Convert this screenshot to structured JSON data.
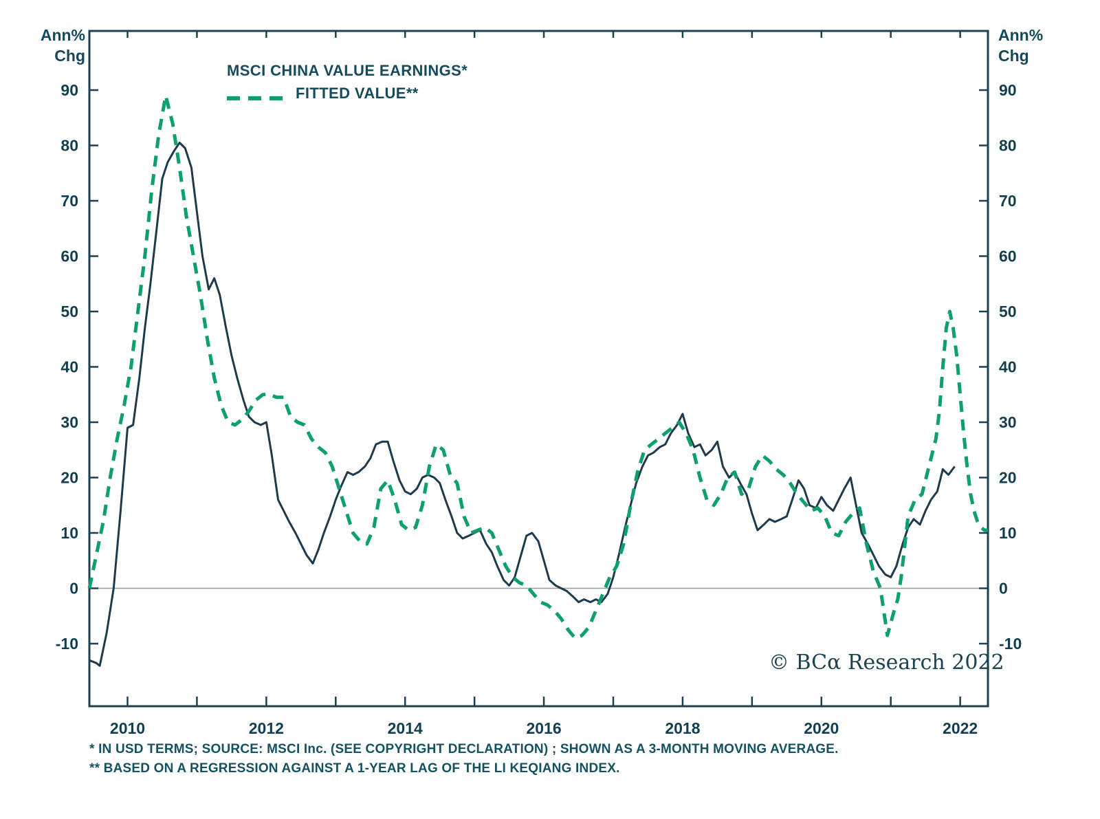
{
  "chart": {
    "y_unit_line1": "Ann%",
    "y_unit_line2": "Chg",
    "series_labels": [
      "MSCI CHINA VALUE EARNINGS*",
      "FITTED VALUE**"
    ],
    "copyright": "© BCα Research 2022",
    "footnotes": [
      "* IN USD TERMS; SOURCE: MSCI Inc. (SEE COPYRIGHT DECLARATION) ; SHOWN AS A 3-MONTH MOVING AVERAGE.",
      "** BASED ON A REGRESSION AGAINST A 1-YEAR LAG OF THE LI KEQIANG INDEX."
    ]
  },
  "chart_data": {
    "type": "line",
    "title": "",
    "xlabel": "",
    "ylabel": "Ann% Chg",
    "ylim": [
      -10,
      90
    ],
    "y_ticks": [
      90,
      80,
      70,
      60,
      50,
      40,
      30,
      20,
      10,
      0,
      -10
    ],
    "x_range": [
      2009.45,
      2022.4
    ],
    "x_ticks": [
      2010,
      2011,
      2012,
      2013,
      2014,
      2015,
      2016,
      2017,
      2018,
      2019,
      2020,
      2021,
      2022
    ],
    "x_tick_labels": [
      2010,
      2012,
      2014,
      2016,
      2018,
      2020,
      2022
    ],
    "grid": false,
    "zero_line": true,
    "legend_position": "top-left-inside",
    "frame_color": "#1d4050",
    "zero_line_color": "#8f9ea4",
    "background": "#ffffff",
    "series": [
      {
        "name": "MSCI CHINA VALUE EARNINGS*",
        "style": "solid",
        "color": "#1e3a4c",
        "points": [
          [
            2009.45,
            -13
          ],
          [
            2009.55,
            -13.5
          ],
          [
            2009.6,
            -14
          ],
          [
            2009.7,
            -8
          ],
          [
            2009.8,
            0
          ],
          [
            2009.9,
            14
          ],
          [
            2010.0,
            29
          ],
          [
            2010.08,
            29.5
          ],
          [
            2010.17,
            38
          ],
          [
            2010.25,
            47
          ],
          [
            2010.33,
            55
          ],
          [
            2010.42,
            65
          ],
          [
            2010.5,
            74
          ],
          [
            2010.58,
            77
          ],
          [
            2010.67,
            79
          ],
          [
            2010.75,
            80.5
          ],
          [
            2010.83,
            79.5
          ],
          [
            2010.92,
            76
          ],
          [
            2011.0,
            68
          ],
          [
            2011.08,
            60
          ],
          [
            2011.17,
            54
          ],
          [
            2011.25,
            56
          ],
          [
            2011.33,
            53
          ],
          [
            2011.42,
            47
          ],
          [
            2011.5,
            42
          ],
          [
            2011.58,
            38
          ],
          [
            2011.67,
            34
          ],
          [
            2011.75,
            31
          ],
          [
            2011.83,
            30
          ],
          [
            2011.92,
            29.5
          ],
          [
            2012.0,
            30
          ],
          [
            2012.08,
            24
          ],
          [
            2012.17,
            16
          ],
          [
            2012.25,
            14
          ],
          [
            2012.33,
            12
          ],
          [
            2012.42,
            10
          ],
          [
            2012.5,
            8
          ],
          [
            2012.58,
            6
          ],
          [
            2012.67,
            4.5
          ],
          [
            2012.75,
            7
          ],
          [
            2012.83,
            10
          ],
          [
            2012.92,
            13
          ],
          [
            2013.0,
            16
          ],
          [
            2013.08,
            18.5
          ],
          [
            2013.17,
            21
          ],
          [
            2013.25,
            20.5
          ],
          [
            2013.33,
            21
          ],
          [
            2013.42,
            22
          ],
          [
            2013.5,
            23.5
          ],
          [
            2013.58,
            26
          ],
          [
            2013.67,
            26.5
          ],
          [
            2013.75,
            26.5
          ],
          [
            2013.83,
            23
          ],
          [
            2013.92,
            19.5
          ],
          [
            2014.0,
            17.5
          ],
          [
            2014.08,
            17
          ],
          [
            2014.17,
            18
          ],
          [
            2014.25,
            20
          ],
          [
            2014.33,
            20.5
          ],
          [
            2014.42,
            20
          ],
          [
            2014.5,
            19
          ],
          [
            2014.58,
            16
          ],
          [
            2014.67,
            13
          ],
          [
            2014.75,
            10
          ],
          [
            2014.83,
            9
          ],
          [
            2014.92,
            9.5
          ],
          [
            2015.0,
            10
          ],
          [
            2015.08,
            10.5
          ],
          [
            2015.17,
            8
          ],
          [
            2015.25,
            6.5
          ],
          [
            2015.33,
            4
          ],
          [
            2015.42,
            1.5
          ],
          [
            2015.5,
            0.5
          ],
          [
            2015.58,
            2
          ],
          [
            2015.67,
            6
          ],
          [
            2015.75,
            9.5
          ],
          [
            2015.83,
            10
          ],
          [
            2015.92,
            8.5
          ],
          [
            2016.0,
            5
          ],
          [
            2016.08,
            1.5
          ],
          [
            2016.17,
            0.5
          ],
          [
            2016.25,
            0
          ],
          [
            2016.33,
            -0.5
          ],
          [
            2016.42,
            -1.5
          ],
          [
            2016.5,
            -2.5
          ],
          [
            2016.58,
            -2
          ],
          [
            2016.67,
            -2.5
          ],
          [
            2016.75,
            -2
          ],
          [
            2016.83,
            -2.5
          ],
          [
            2016.92,
            -1
          ],
          [
            2017.0,
            2
          ],
          [
            2017.08,
            6
          ],
          [
            2017.17,
            11
          ],
          [
            2017.25,
            15
          ],
          [
            2017.33,
            19
          ],
          [
            2017.42,
            22
          ],
          [
            2017.5,
            24
          ],
          [
            2017.58,
            24.5
          ],
          [
            2017.67,
            25.5
          ],
          [
            2017.75,
            26
          ],
          [
            2017.83,
            28
          ],
          [
            2017.92,
            29.5
          ],
          [
            2018.0,
            31.5
          ],
          [
            2018.08,
            28
          ],
          [
            2018.17,
            25.5
          ],
          [
            2018.25,
            26
          ],
          [
            2018.33,
            24
          ],
          [
            2018.42,
            25
          ],
          [
            2018.5,
            26.5
          ],
          [
            2018.58,
            22
          ],
          [
            2018.67,
            20
          ],
          [
            2018.75,
            21
          ],
          [
            2018.83,
            19
          ],
          [
            2018.92,
            17
          ],
          [
            2019.0,
            13.5
          ],
          [
            2019.08,
            10.5
          ],
          [
            2019.17,
            11.5
          ],
          [
            2019.25,
            12.5
          ],
          [
            2019.33,
            12
          ],
          [
            2019.42,
            12.5
          ],
          [
            2019.5,
            13
          ],
          [
            2019.58,
            16
          ],
          [
            2019.67,
            19.5
          ],
          [
            2019.75,
            18
          ],
          [
            2019.83,
            15
          ],
          [
            2019.92,
            14.5
          ],
          [
            2020.0,
            16.5
          ],
          [
            2020.08,
            15
          ],
          [
            2020.17,
            14
          ],
          [
            2020.25,
            16
          ],
          [
            2020.33,
            18
          ],
          [
            2020.42,
            20
          ],
          [
            2020.5,
            15
          ],
          [
            2020.58,
            10
          ],
          [
            2020.67,
            8
          ],
          [
            2020.75,
            6
          ],
          [
            2020.83,
            4
          ],
          [
            2020.92,
            2.5
          ],
          [
            2021.0,
            2
          ],
          [
            2021.08,
            4
          ],
          [
            2021.17,
            8
          ],
          [
            2021.25,
            11
          ],
          [
            2021.33,
            12.5
          ],
          [
            2021.42,
            11.5
          ],
          [
            2021.5,
            14
          ],
          [
            2021.58,
            16
          ],
          [
            2021.67,
            17.5
          ],
          [
            2021.75,
            21.5
          ],
          [
            2021.83,
            20.5
          ],
          [
            2021.92,
            22
          ]
        ]
      },
      {
        "name": "FITTED VALUE**",
        "style": "dashed",
        "color": "#0d9f6f",
        "points": [
          [
            2009.45,
            0
          ],
          [
            2009.55,
            6
          ],
          [
            2009.65,
            12
          ],
          [
            2009.75,
            20
          ],
          [
            2009.85,
            27
          ],
          [
            2009.95,
            33
          ],
          [
            2010.05,
            40
          ],
          [
            2010.15,
            50
          ],
          [
            2010.25,
            60
          ],
          [
            2010.35,
            72
          ],
          [
            2010.45,
            82
          ],
          [
            2010.55,
            89
          ],
          [
            2010.65,
            84
          ],
          [
            2010.75,
            76
          ],
          [
            2010.85,
            67
          ],
          [
            2010.95,
            60
          ],
          [
            2011.05,
            53
          ],
          [
            2011.15,
            45
          ],
          [
            2011.25,
            38
          ],
          [
            2011.35,
            33
          ],
          [
            2011.45,
            30
          ],
          [
            2011.55,
            29.5
          ],
          [
            2011.65,
            30.5
          ],
          [
            2011.75,
            32
          ],
          [
            2011.85,
            34
          ],
          [
            2011.95,
            35
          ],
          [
            2012.05,
            35
          ],
          [
            2012.15,
            34.5
          ],
          [
            2012.25,
            34.5
          ],
          [
            2012.35,
            31
          ],
          [
            2012.45,
            30
          ],
          [
            2012.55,
            29.5
          ],
          [
            2012.65,
            27
          ],
          [
            2012.75,
            25.5
          ],
          [
            2012.85,
            24.5
          ],
          [
            2012.95,
            22
          ],
          [
            2013.05,
            18
          ],
          [
            2013.15,
            14
          ],
          [
            2013.25,
            10
          ],
          [
            2013.35,
            8.5
          ],
          [
            2013.45,
            8
          ],
          [
            2013.55,
            11
          ],
          [
            2013.65,
            18
          ],
          [
            2013.75,
            19.5
          ],
          [
            2013.85,
            16
          ],
          [
            2013.95,
            11.5
          ],
          [
            2014.05,
            10.5
          ],
          [
            2014.15,
            11
          ],
          [
            2014.25,
            15
          ],
          [
            2014.35,
            22
          ],
          [
            2014.45,
            26
          ],
          [
            2014.55,
            25
          ],
          [
            2014.65,
            20.5
          ],
          [
            2014.75,
            19
          ],
          [
            2014.85,
            13
          ],
          [
            2014.95,
            10
          ],
          [
            2015.05,
            10.5
          ],
          [
            2015.15,
            11
          ],
          [
            2015.25,
            10
          ],
          [
            2015.35,
            7
          ],
          [
            2015.45,
            4
          ],
          [
            2015.55,
            2
          ],
          [
            2015.65,
            1
          ],
          [
            2015.75,
            0.5
          ],
          [
            2015.85,
            -1
          ],
          [
            2015.95,
            -2.5
          ],
          [
            2016.05,
            -3
          ],
          [
            2016.15,
            -4
          ],
          [
            2016.25,
            -5.5
          ],
          [
            2016.35,
            -7.5
          ],
          [
            2016.45,
            -9
          ],
          [
            2016.55,
            -8.5
          ],
          [
            2016.65,
            -7
          ],
          [
            2016.75,
            -4
          ],
          [
            2016.85,
            -1
          ],
          [
            2016.95,
            2
          ],
          [
            2017.05,
            4
          ],
          [
            2017.15,
            8
          ],
          [
            2017.25,
            15
          ],
          [
            2017.35,
            21
          ],
          [
            2017.45,
            25
          ],
          [
            2017.55,
            26
          ],
          [
            2017.65,
            27
          ],
          [
            2017.75,
            28
          ],
          [
            2017.85,
            29
          ],
          [
            2017.95,
            30
          ],
          [
            2018.05,
            28
          ],
          [
            2018.15,
            25
          ],
          [
            2018.25,
            20
          ],
          [
            2018.35,
            16
          ],
          [
            2018.45,
            15
          ],
          [
            2018.55,
            17
          ],
          [
            2018.65,
            20
          ],
          [
            2018.75,
            21
          ],
          [
            2018.85,
            17
          ],
          [
            2018.95,
            18
          ],
          [
            2019.05,
            22
          ],
          [
            2019.15,
            24
          ],
          [
            2019.25,
            23
          ],
          [
            2019.35,
            21.5
          ],
          [
            2019.45,
            20.5
          ],
          [
            2019.55,
            19
          ],
          [
            2019.65,
            17
          ],
          [
            2019.75,
            15.5
          ],
          [
            2019.85,
            14
          ],
          [
            2019.95,
            14.5
          ],
          [
            2020.05,
            13
          ],
          [
            2020.15,
            10
          ],
          [
            2020.25,
            9.5
          ],
          [
            2020.35,
            12
          ],
          [
            2020.45,
            13.5
          ],
          [
            2020.55,
            14.5
          ],
          [
            2020.65,
            8
          ],
          [
            2020.75,
            3
          ],
          [
            2020.85,
            0
          ],
          [
            2020.95,
            -8.5
          ],
          [
            2021.05,
            -4
          ],
          [
            2021.1,
            -2
          ],
          [
            2021.15,
            2
          ],
          [
            2021.25,
            13
          ],
          [
            2021.35,
            16
          ],
          [
            2021.45,
            17
          ],
          [
            2021.55,
            22
          ],
          [
            2021.65,
            27
          ],
          [
            2021.7,
            32
          ],
          [
            2021.75,
            40
          ],
          [
            2021.8,
            47
          ],
          [
            2021.85,
            50
          ],
          [
            2021.9,
            47
          ],
          [
            2021.95,
            42
          ],
          [
            2022.0,
            35
          ],
          [
            2022.05,
            28
          ],
          [
            2022.1,
            22
          ],
          [
            2022.15,
            17
          ],
          [
            2022.2,
            14
          ],
          [
            2022.25,
            12
          ],
          [
            2022.3,
            11
          ],
          [
            2022.35,
            10.5
          ],
          [
            2022.4,
            10.5
          ]
        ]
      }
    ]
  }
}
